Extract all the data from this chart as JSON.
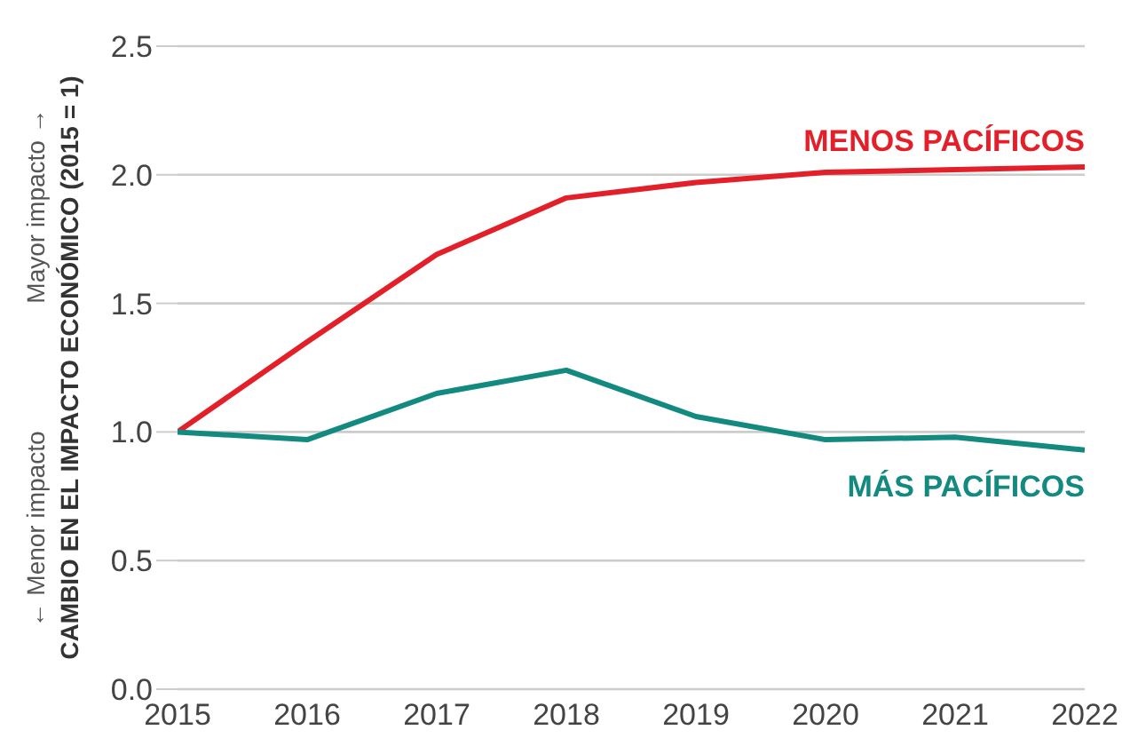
{
  "chart_data": {
    "type": "line",
    "ylabel": "CAMBIO EN EL IMPACTO ECONÓMICO (2015 = 1)",
    "annotations": [
      "Mayor impacto →",
      "← Menor impacto"
    ],
    "x": [
      2015,
      2016,
      2017,
      2018,
      2019,
      2020,
      2021,
      2022
    ],
    "xlim": [
      2015,
      2022
    ],
    "xticks": [
      2015,
      2016,
      2017,
      2018,
      2019,
      2020,
      2021,
      2022
    ],
    "ylim": [
      0,
      2.5
    ],
    "yticks": [
      {
        "value": 0,
        "label": "0.0"
      },
      {
        "value": 0.5,
        "label": "0.5"
      },
      {
        "value": 1,
        "label": "1.0"
      },
      {
        "value": 1.5,
        "label": "1.5"
      },
      {
        "value": 2,
        "label": "2.0"
      },
      {
        "value": 2.5,
        "label": "2.5"
      }
    ],
    "grid": "y",
    "legend": false,
    "marker": "none",
    "line_style": "solid",
    "series": [
      {
        "name": "MENOS PACÍFICOS",
        "color": "#e3202a",
        "values": [
          1.0,
          1.35,
          1.69,
          1.91,
          1.97,
          2.01,
          2.02,
          2.03
        ]
      },
      {
        "name": "MÁS PACÍFICOS",
        "color": "#138a80",
        "values": [
          1.0,
          0.97,
          1.15,
          1.24,
          1.06,
          0.97,
          0.98,
          0.93
        ]
      }
    ]
  }
}
